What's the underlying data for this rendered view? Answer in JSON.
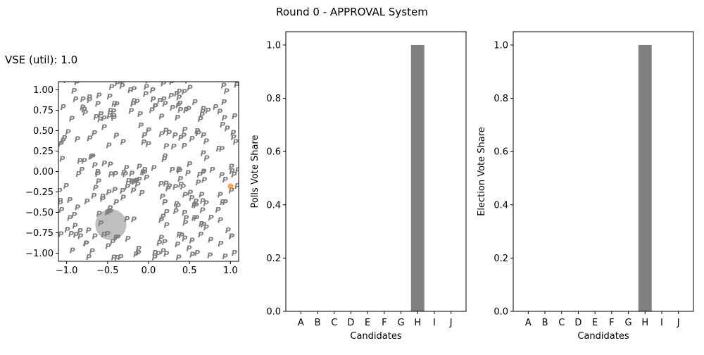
{
  "suptitle": "Round 0 - APPROVAL System",
  "vse_label": "VSE (util): 1.0",
  "chart_data": [
    {
      "type": "scatter",
      "title": "VSE (util): 1.0",
      "xlim": [
        -1.1,
        1.1
      ],
      "ylim": [
        -1.1,
        1.1
      ],
      "xticks": [
        -1.0,
        -0.5,
        0.0,
        0.5,
        1.0
      ],
      "xtick_labels": [
        "−1.0",
        "−0.5",
        "0.0",
        "0.5",
        "1.0"
      ],
      "yticks": [
        1.0,
        0.75,
        0.5,
        0.25,
        0.0,
        -0.25,
        -0.5,
        -0.75,
        -1.0
      ],
      "ytick_labels": [
        "1.00",
        "0.75",
        "0.50",
        "0.25",
        "0.00",
        "−0.25",
        "−0.50",
        "−0.75",
        "−1.00"
      ],
      "voter_marker": "P",
      "voter_color": "#7f7f7f",
      "voter_count": 300,
      "candidate": {
        "x": 1.0,
        "y": -0.18,
        "color": "#ff7f0e"
      },
      "region": {
        "x": -0.46,
        "y": -0.65,
        "r": 0.19,
        "color": "#7f7f7f"
      },
      "grid": false
    },
    {
      "type": "bar",
      "categories": [
        "A",
        "B",
        "C",
        "D",
        "E",
        "F",
        "G",
        "H",
        "I",
        "J"
      ],
      "values": [
        0,
        0,
        0,
        0,
        0,
        0,
        0,
        1.0,
        0,
        0
      ],
      "xlabel": "Candidates",
      "ylabel": "Polls Vote Share",
      "ylim": [
        0,
        1.05
      ],
      "yticks": [
        0.0,
        0.2,
        0.4,
        0.6,
        0.8,
        1.0
      ],
      "ytick_labels": [
        "0.0",
        "0.2",
        "0.4",
        "0.6",
        "0.8",
        "1.0"
      ],
      "bar_color": "#808080"
    },
    {
      "type": "bar",
      "categories": [
        "A",
        "B",
        "C",
        "D",
        "E",
        "F",
        "G",
        "H",
        "I",
        "J"
      ],
      "values": [
        0,
        0,
        0,
        0,
        0,
        0,
        0,
        1.0,
        0,
        0
      ],
      "xlabel": "Candidates",
      "ylabel": "Election Vote Share",
      "ylim": [
        0,
        1.05
      ],
      "yticks": [
        0.0,
        0.2,
        0.4,
        0.6,
        0.8,
        1.0
      ],
      "ytick_labels": [
        "0.0",
        "0.2",
        "0.4",
        "0.6",
        "0.8",
        "1.0"
      ],
      "bar_color": "#808080"
    }
  ]
}
